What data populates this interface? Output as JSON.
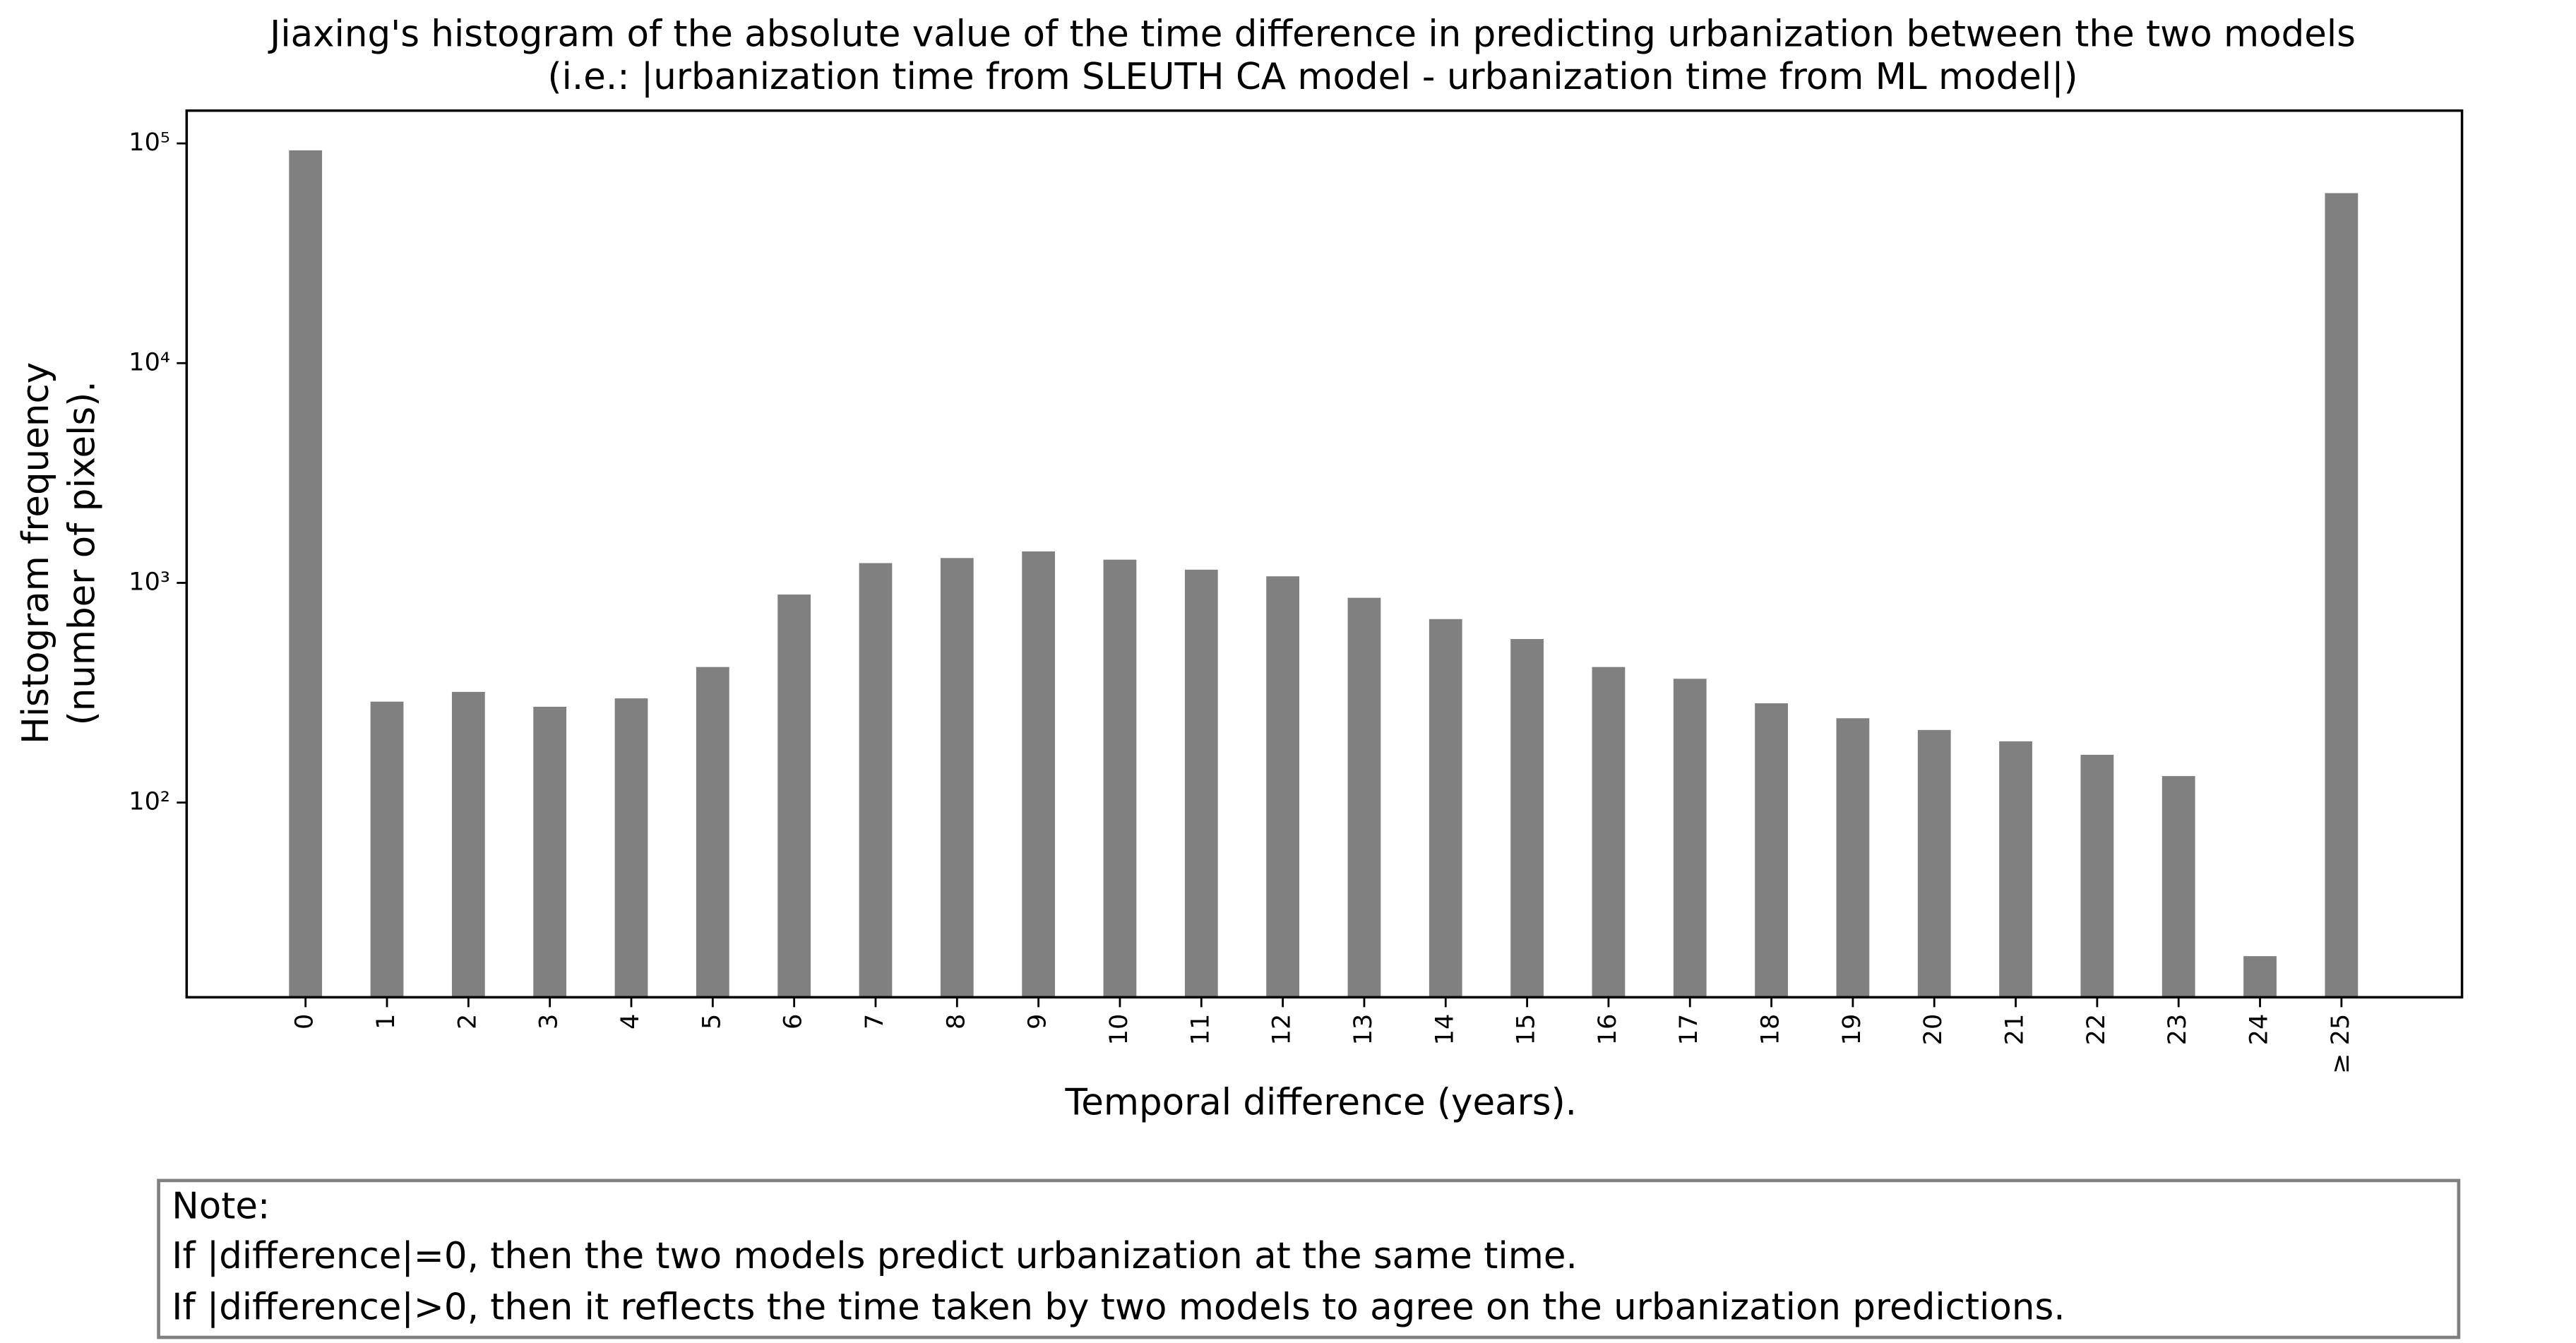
{
  "chart_data": {
    "type": "bar",
    "title": [
      "Jiaxing's histogram of the absolute value of the time difference in predicting urbanization between the two models",
      "(i.e.: |urbanization time from SLEUTH CA model - urbanization time from ML model|)"
    ],
    "x_label": "Temporal difference (years).",
    "y_label": [
      "Histogram frequency",
      "(number of pixels)."
    ],
    "categories": [
      "0",
      "1",
      "2",
      "3",
      "4",
      "5",
      "6",
      "7",
      "8",
      "9",
      "10",
      "11",
      "12",
      "13",
      "14",
      "15",
      "16",
      "17",
      "18",
      "19",
      "20",
      "21",
      "22",
      "23",
      "24",
      "≥ 25"
    ],
    "values": [
      93000,
      288,
      319,
      273,
      298,
      414,
      885,
      1230,
      1297,
      1390,
      1275,
      1148,
      1071,
      855,
      684,
      555,
      414,
      366,
      283,
      242,
      214,
      190,
      165,
      132,
      20,
      59400
    ],
    "color": "#808080",
    "log_y": true,
    "ylim": [
      13,
      141000
    ],
    "yticks": [
      {
        "value": 100,
        "label": "10²"
      },
      {
        "value": 1000,
        "label": "10³"
      },
      {
        "value": 10000,
        "label": "10⁴"
      },
      {
        "value": 100000,
        "label": "10⁵"
      }
    ],
    "annotations": [
      "Note:",
      "If |difference|=0, then the two models predict urbanization at the same time.",
      "If |difference|>0, then it reflects the time taken by two models to agree on the urbanization predictions."
    ]
  }
}
